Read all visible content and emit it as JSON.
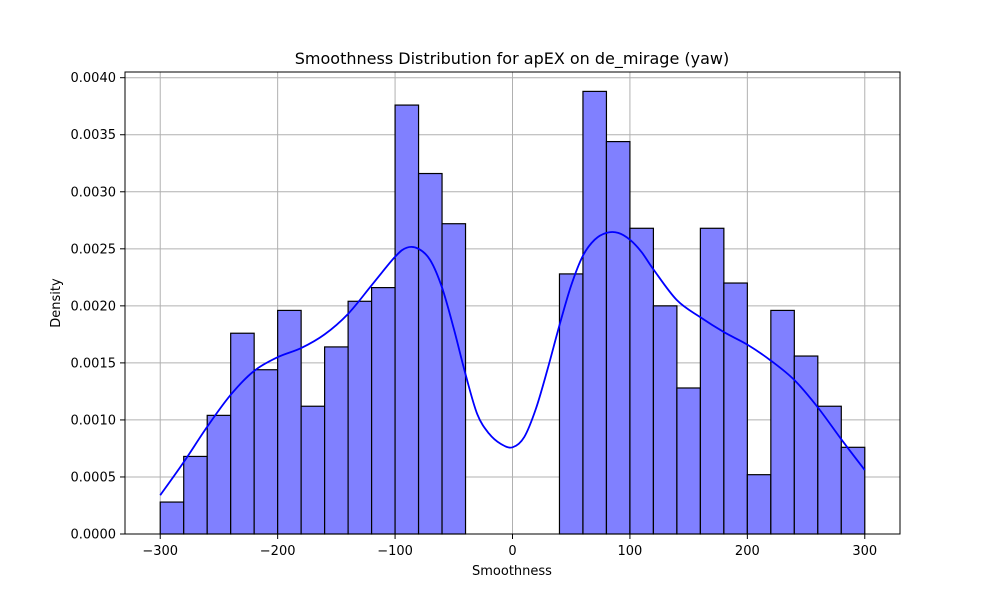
{
  "chart_data": {
    "type": "histogram",
    "title": "Smoothness Distribution for apEX on de_mirage (yaw)",
    "xlabel": "Smoothness",
    "ylabel": "Density",
    "xlim": [
      -330,
      330
    ],
    "ylim": [
      0,
      0.00405
    ],
    "grid": true,
    "xticks": [
      -300,
      -200,
      -100,
      0,
      100,
      200,
      300
    ],
    "xtick_labels": [
      "−300",
      "−200",
      "−100",
      "0",
      "100",
      "200",
      "300"
    ],
    "yticks": [
      0,
      0.0005,
      0.001,
      0.0015,
      0.002,
      0.0025,
      0.003,
      0.0035,
      0.004
    ],
    "ytick_labels": [
      "0.0000",
      "0.0005",
      "0.0010",
      "0.0015",
      "0.0020",
      "0.0025",
      "0.0030",
      "0.0035",
      "0.0040"
    ],
    "bar_color": "#8080ff",
    "bar_edge_color": "#000000",
    "kde_color": "#0000ff",
    "bins": [
      {
        "x0": -300,
        "x1": -280,
        "density": 0.00028
      },
      {
        "x0": -280,
        "x1": -260,
        "density": 0.00068
      },
      {
        "x0": -260,
        "x1": -240,
        "density": 0.00104
      },
      {
        "x0": -240,
        "x1": -220,
        "density": 0.00176
      },
      {
        "x0": -220,
        "x1": -200,
        "density": 0.00144
      },
      {
        "x0": -200,
        "x1": -180,
        "density": 0.00196
      },
      {
        "x0": -180,
        "x1": -160,
        "density": 0.00112
      },
      {
        "x0": -160,
        "x1": -140,
        "density": 0.00164
      },
      {
        "x0": -140,
        "x1": -120,
        "density": 0.00204
      },
      {
        "x0": -120,
        "x1": -100,
        "density": 0.00216
      },
      {
        "x0": -100,
        "x1": -80,
        "density": 0.00376
      },
      {
        "x0": -80,
        "x1": -60,
        "density": 0.00316
      },
      {
        "x0": -60,
        "x1": -40,
        "density": 0.00272
      },
      {
        "x0": 40,
        "x1": 60,
        "density": 0.00228
      },
      {
        "x0": 60,
        "x1": 80,
        "density": 0.00388
      },
      {
        "x0": 80,
        "x1": 100,
        "density": 0.00344
      },
      {
        "x0": 100,
        "x1": 120,
        "density": 0.00268
      },
      {
        "x0": 120,
        "x1": 140,
        "density": 0.002
      },
      {
        "x0": 140,
        "x1": 160,
        "density": 0.00128
      },
      {
        "x0": 160,
        "x1": 180,
        "density": 0.00268
      },
      {
        "x0": 180,
        "x1": 200,
        "density": 0.0022
      },
      {
        "x0": 200,
        "x1": 220,
        "density": 0.00052
      },
      {
        "x0": 220,
        "x1": 240,
        "density": 0.00196
      },
      {
        "x0": 240,
        "x1": 260,
        "density": 0.00156
      },
      {
        "x0": 260,
        "x1": 280,
        "density": 0.00112
      },
      {
        "x0": 280,
        "x1": 300,
        "density": 0.00076
      }
    ],
    "kde": {
      "x": [
        -300,
        -280,
        -260,
        -240,
        -220,
        -200,
        -180,
        -160,
        -140,
        -120,
        -100,
        -90,
        -80,
        -70,
        -60,
        -50,
        -40,
        -30,
        -20,
        -10,
        0,
        10,
        20,
        30,
        40,
        50,
        60,
        70,
        80,
        90,
        100,
        110,
        120,
        140,
        160,
        180,
        200,
        220,
        240,
        260,
        280,
        300
      ],
      "y": [
        0.00034,
        0.00063,
        0.00094,
        0.00122,
        0.00143,
        0.00155,
        0.00163,
        0.00175,
        0.00193,
        0.00218,
        0.00243,
        0.00251,
        0.0025,
        0.0024,
        0.00216,
        0.0018,
        0.0014,
        0.00105,
        0.00088,
        0.00079,
        0.00076,
        0.00085,
        0.0011,
        0.00145,
        0.00183,
        0.00218,
        0.00244,
        0.00258,
        0.00264,
        0.00264,
        0.00258,
        0.00247,
        0.00232,
        0.00205,
        0.0019,
        0.00177,
        0.00166,
        0.00152,
        0.00135,
        0.00111,
        0.00083,
        0.00056
      ]
    }
  }
}
